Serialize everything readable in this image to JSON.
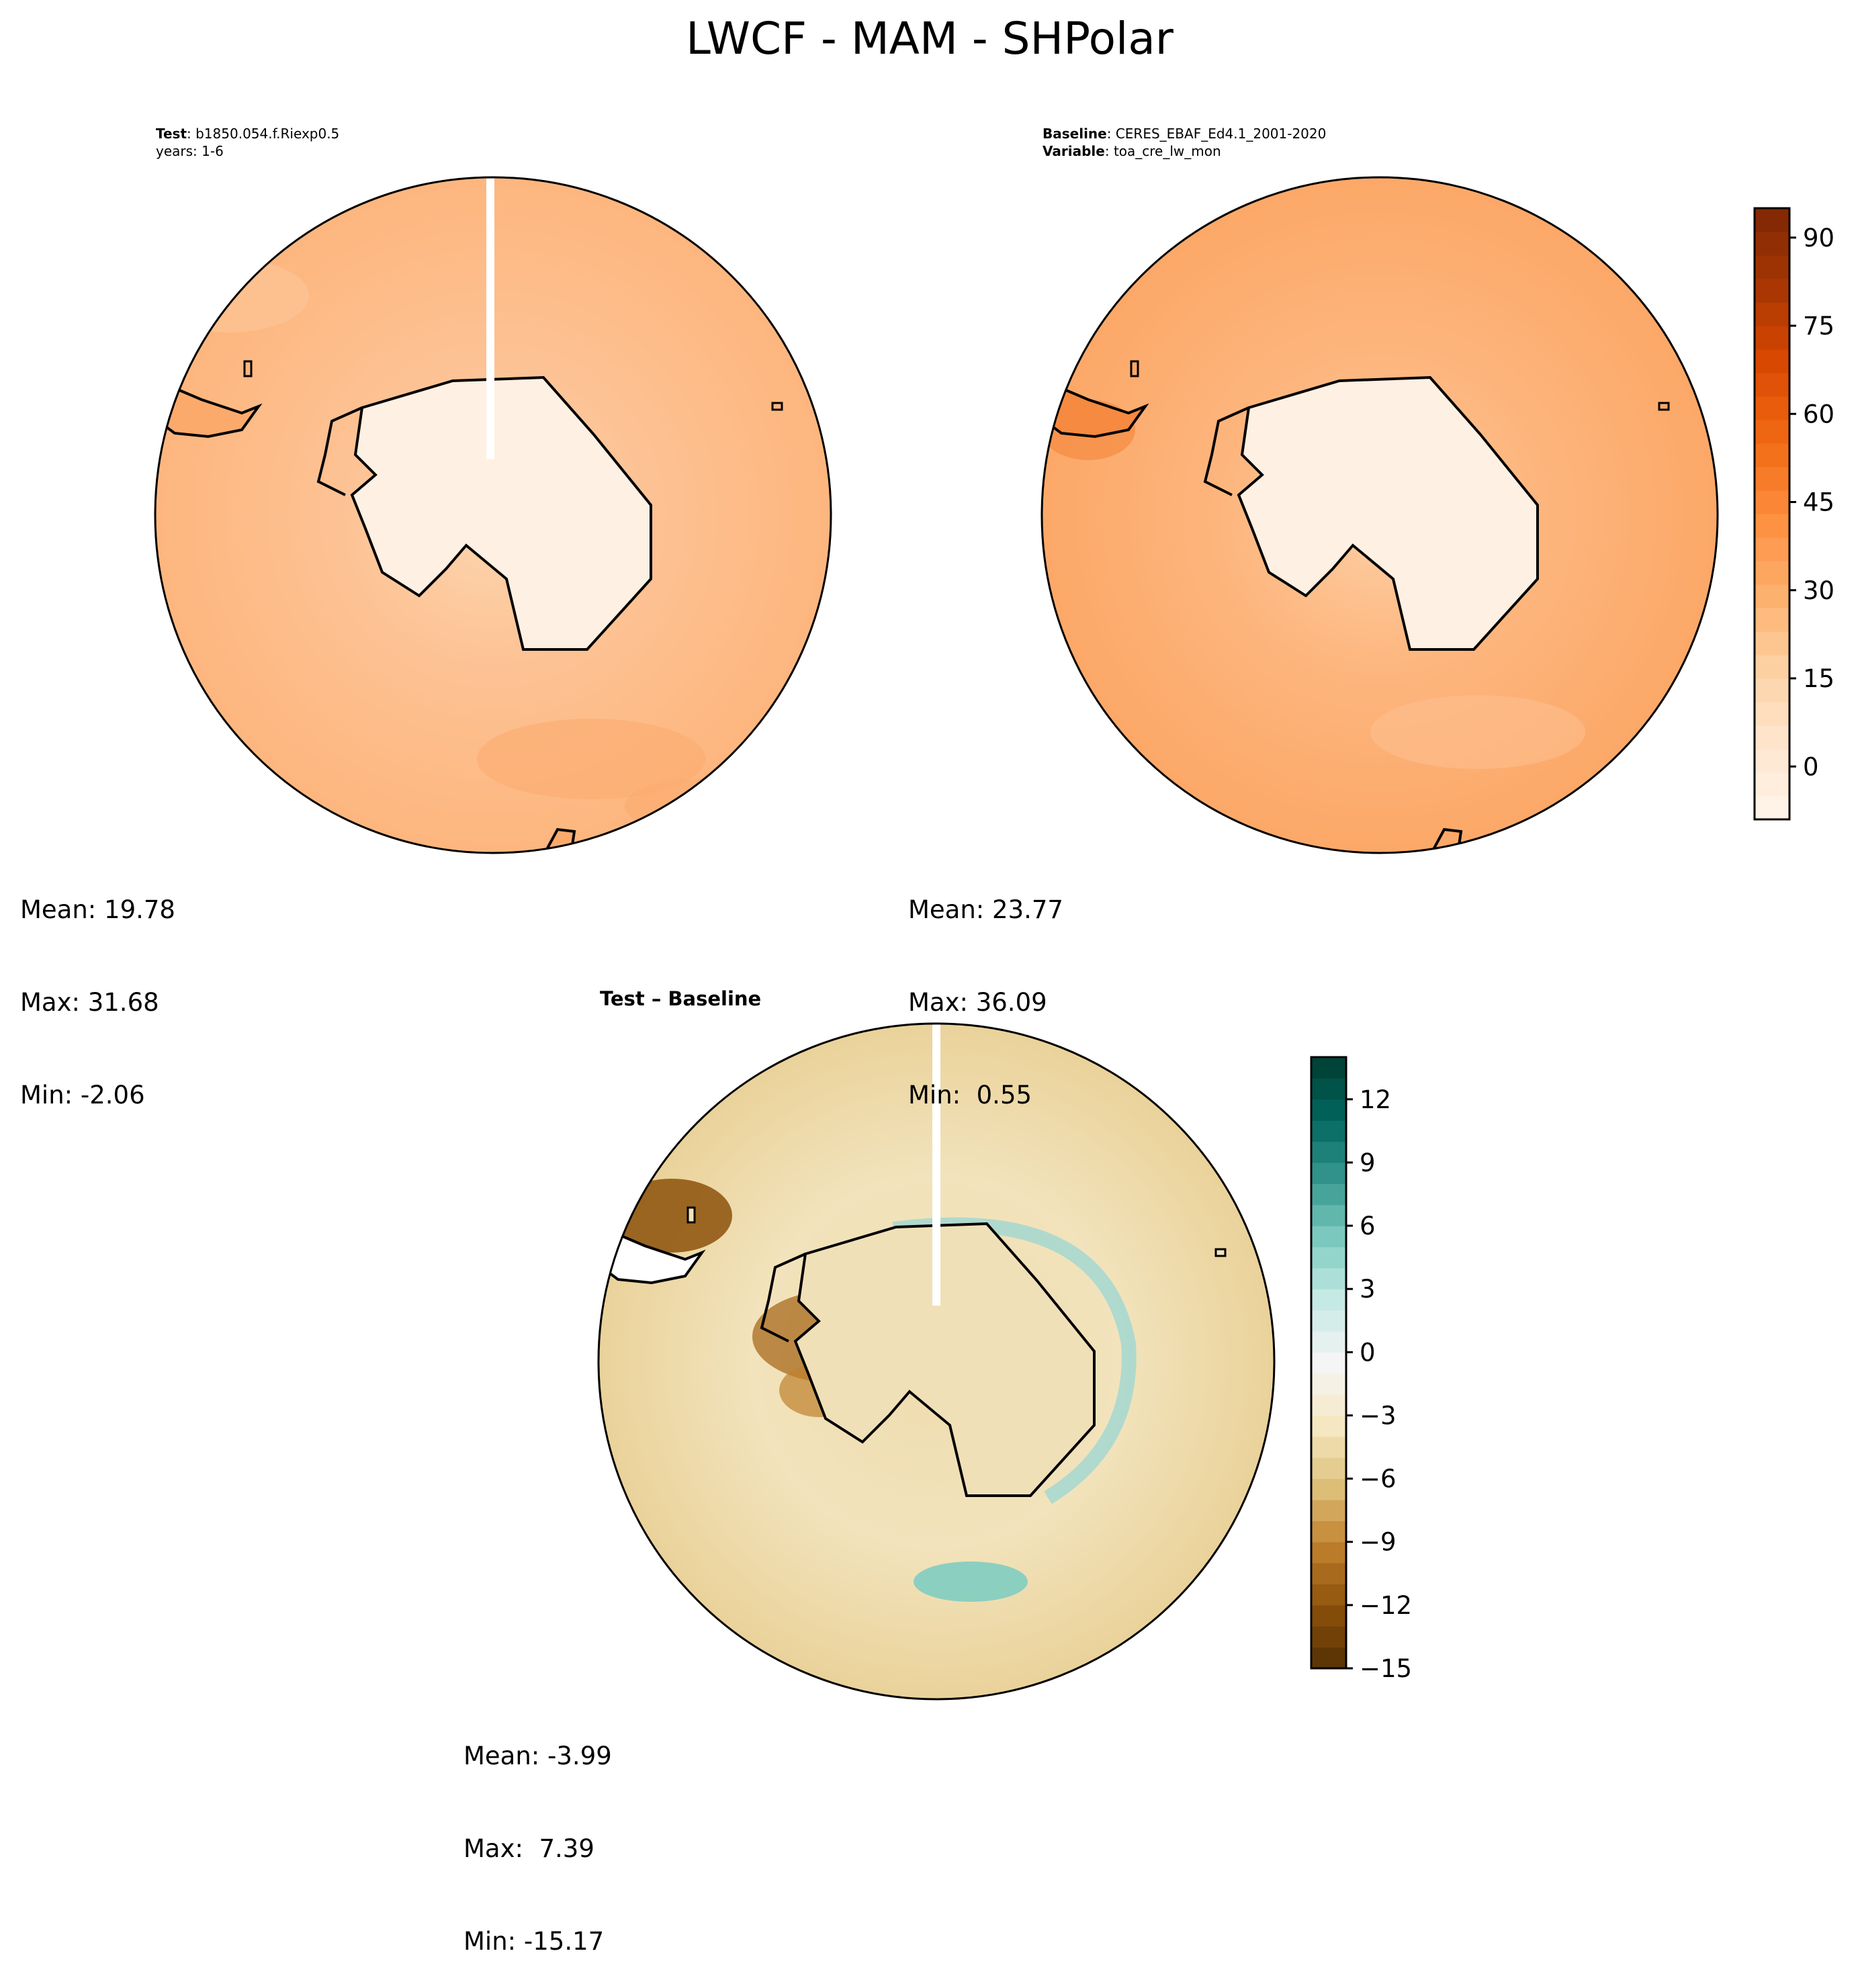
{
  "figure_title": "LWCF - MAM - SHPolar",
  "chart_data": [
    {
      "type": "heatmap",
      "projection": "south-polar-stereographic",
      "panel": "test",
      "header_lines": [
        {
          "label": "Test",
          "value": ": b1850.054.f.Riexp0.5"
        },
        {
          "label": "",
          "value": "years: 1-6"
        }
      ],
      "stats": {
        "mean": "Mean: 19.78",
        "max": "Max: 31.68",
        "min": "Min: -2.06"
      },
      "field_range": [
        -2.06,
        31.68
      ],
      "colorbar": "shared-lwcf",
      "title": "",
      "xlabel": "",
      "ylabel": ""
    },
    {
      "type": "heatmap",
      "projection": "south-polar-stereographic",
      "panel": "baseline",
      "header_lines": [
        {
          "label": "Baseline",
          "value": ": CERES_EBAF_Ed4.1_2001-2020"
        },
        {
          "label": "Variable",
          "value": ": toa_cre_lw_mon"
        }
      ],
      "stats": {
        "mean": "Mean: 23.77",
        "max": "Max: 36.09",
        "min": "Min:  0.55"
      },
      "field_range": [
        0.55,
        36.09
      ],
      "colorbar": "shared-lwcf",
      "title": "",
      "xlabel": "",
      "ylabel": ""
    },
    {
      "type": "heatmap",
      "projection": "south-polar-stereographic",
      "panel": "difference",
      "title": "Test – Baseline",
      "stats": {
        "mean": "Mean: -3.99",
        "max": "Max:  7.39",
        "min": "Min: -15.17"
      },
      "field_range": [
        -15.17,
        7.39
      ],
      "colorbar": "diff",
      "xlabel": "",
      "ylabel": ""
    }
  ],
  "colorbars": {
    "shared": {
      "range": [
        -9,
        95
      ],
      "ticks": [
        0,
        15,
        30,
        45,
        60,
        75,
        90
      ],
      "tick_labels": [
        "0",
        "15",
        "30",
        "45",
        "60",
        "75",
        "90"
      ],
      "levels": 26,
      "palette": [
        "#fff5eb",
        "#fee6ce",
        "#fdd0a2",
        "#fdae6b",
        "#fd8d3c",
        "#f16913",
        "#d94801",
        "#a63603",
        "#7f2704"
      ]
    },
    "diff": {
      "range": [
        -15,
        14
      ],
      "ticks": [
        -15,
        -12,
        -9,
        -6,
        -3,
        0,
        3,
        6,
        9,
        12
      ],
      "tick_labels": [
        "−15",
        "−12",
        "−9",
        "−6",
        "−3",
        "0",
        "3",
        "6",
        "9",
        "12"
      ],
      "levels": 29,
      "palette": [
        "#543005",
        "#8c510a",
        "#bf812d",
        "#dfc27d",
        "#f6e8c3",
        "#f5f5f5",
        "#c7eae5",
        "#80cdc1",
        "#35978f",
        "#01665e",
        "#003c30"
      ]
    }
  },
  "colors": {
    "ocean_test": "#fdb67e",
    "ocean_baseline": "#fca868",
    "continent_fill": "#fef0e2",
    "coast": "#000000"
  }
}
